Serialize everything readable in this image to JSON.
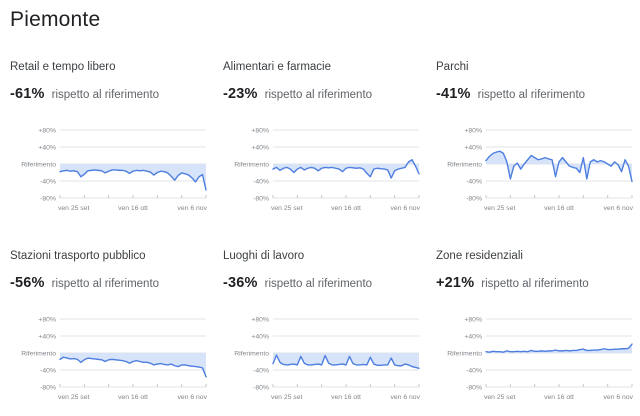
{
  "page_title": "Piemonte",
  "colors": {
    "line": "#4d7ee0",
    "fill": "#d7e3f8",
    "grid": "#e2e3e5",
    "tick": "#c6c8ca",
    "axis_text": "#80868b"
  },
  "axis": {
    "y_tick_labels": [
      "+80%",
      "+40%",
      "Riferimento",
      "-40%",
      "-80%"
    ],
    "y_ticks_pct": [
      80,
      40,
      0,
      -40,
      -80
    ],
    "x_tick_labels": [
      "ven 25 set",
      "ven 16 ott",
      "ven 6 nov"
    ],
    "weekly_tick_count": 7
  },
  "chart_data": [
    {
      "type": "line",
      "title": "Retail e tempo libero",
      "headline_value": "-61%",
      "headline_label": "rispetto al riferimento",
      "ylim": [
        -80,
        80
      ],
      "x_range": [
        "ven 25 set",
        "ven 6 nov"
      ],
      "values": [
        -18,
        -16,
        -15,
        -17,
        -16,
        -18,
        -30,
        -24,
        -16,
        -15,
        -14,
        -15,
        -16,
        -21,
        -17,
        -14,
        -14,
        -15,
        -15,
        -17,
        -22,
        -17,
        -15,
        -16,
        -15,
        -17,
        -19,
        -26,
        -20,
        -17,
        -18,
        -21,
        -29,
        -38,
        -27,
        -21,
        -23,
        -26,
        -33,
        -42,
        -30,
        -25,
        -61
      ]
    },
    {
      "type": "line",
      "title": "Alimentari e farmacie",
      "headline_value": "-23%",
      "headline_label": "rispetto al riferimento",
      "ylim": [
        -80,
        80
      ],
      "x_range": [
        "ven 25 set",
        "ven 6 nov"
      ],
      "values": [
        -12,
        -8,
        -15,
        -10,
        -8,
        -12,
        -20,
        -12,
        -8,
        -14,
        -10,
        -8,
        -10,
        -16,
        -10,
        -8,
        -9,
        -8,
        -10,
        -12,
        -18,
        -10,
        -8,
        -9,
        -10,
        -9,
        -12,
        -22,
        -30,
        -12,
        -10,
        -11,
        -12,
        -14,
        -33,
        -16,
        -12,
        -10,
        -8,
        5,
        10,
        -5,
        -23
      ]
    },
    {
      "type": "line",
      "title": "Parchi",
      "headline_value": "-41%",
      "headline_label": "rispetto al riferimento",
      "ylim": [
        -80,
        80
      ],
      "x_range": [
        "ven 25 set",
        "ven 6 nov"
      ],
      "values": [
        8,
        18,
        25,
        28,
        30,
        25,
        5,
        -35,
        -5,
        2,
        -12,
        0,
        10,
        20,
        15,
        10,
        12,
        15,
        12,
        10,
        -30,
        5,
        15,
        5,
        -5,
        -8,
        -10,
        -20,
        15,
        -35,
        5,
        10,
        5,
        8,
        5,
        0,
        -5,
        5,
        -2,
        -18,
        10,
        -5,
        -41
      ]
    },
    {
      "type": "line",
      "title": "Stazioni trasporto pubblico",
      "headline_value": "-56%",
      "headline_label": "rispetto al riferimento",
      "ylim": [
        -80,
        80
      ],
      "x_range": [
        "ven 25 set",
        "ven 6 nov"
      ],
      "values": [
        -15,
        -10,
        -12,
        -14,
        -13,
        -15,
        -22,
        -16,
        -12,
        -13,
        -14,
        -15,
        -16,
        -20,
        -16,
        -15,
        -16,
        -17,
        -18,
        -20,
        -24,
        -20,
        -18,
        -20,
        -22,
        -22,
        -24,
        -28,
        -26,
        -25,
        -27,
        -28,
        -26,
        -30,
        -32,
        -28,
        -28,
        -30,
        -31,
        -32,
        -33,
        -35,
        -56
      ]
    },
    {
      "type": "line",
      "title": "Luoghi di lavoro",
      "headline_value": "-36%",
      "headline_label": "rispetto al riferimento",
      "ylim": [
        -80,
        80
      ],
      "x_range": [
        "ven 25 set",
        "ven 6 nov"
      ],
      "values": [
        -25,
        -5,
        -22,
        -27,
        -28,
        -27,
        -26,
        -28,
        -8,
        -24,
        -28,
        -28,
        -27,
        -26,
        -28,
        -6,
        -24,
        -28,
        -28,
        -27,
        -26,
        -28,
        -8,
        -25,
        -28,
        -28,
        -27,
        -28,
        -10,
        -26,
        -29,
        -29,
        -28,
        -28,
        -12,
        -28,
        -30,
        -30,
        -26,
        -28,
        -32,
        -34,
        -36
      ]
    },
    {
      "type": "line",
      "title": "Zone residenziali",
      "headline_value": "+21%",
      "headline_label": "rispetto al riferimento",
      "ylim": [
        -80,
        80
      ],
      "x_range": [
        "ven 25 set",
        "ven 6 nov"
      ],
      "values": [
        3,
        2,
        4,
        3,
        3,
        2,
        5,
        3,
        3,
        4,
        3,
        4,
        3,
        6,
        4,
        4,
        5,
        4,
        5,
        5,
        7,
        5,
        5,
        6,
        5,
        6,
        6,
        8,
        9,
        6,
        6,
        7,
        7,
        8,
        10,
        8,
        8,
        9,
        9,
        10,
        10,
        11,
        21
      ]
    }
  ]
}
